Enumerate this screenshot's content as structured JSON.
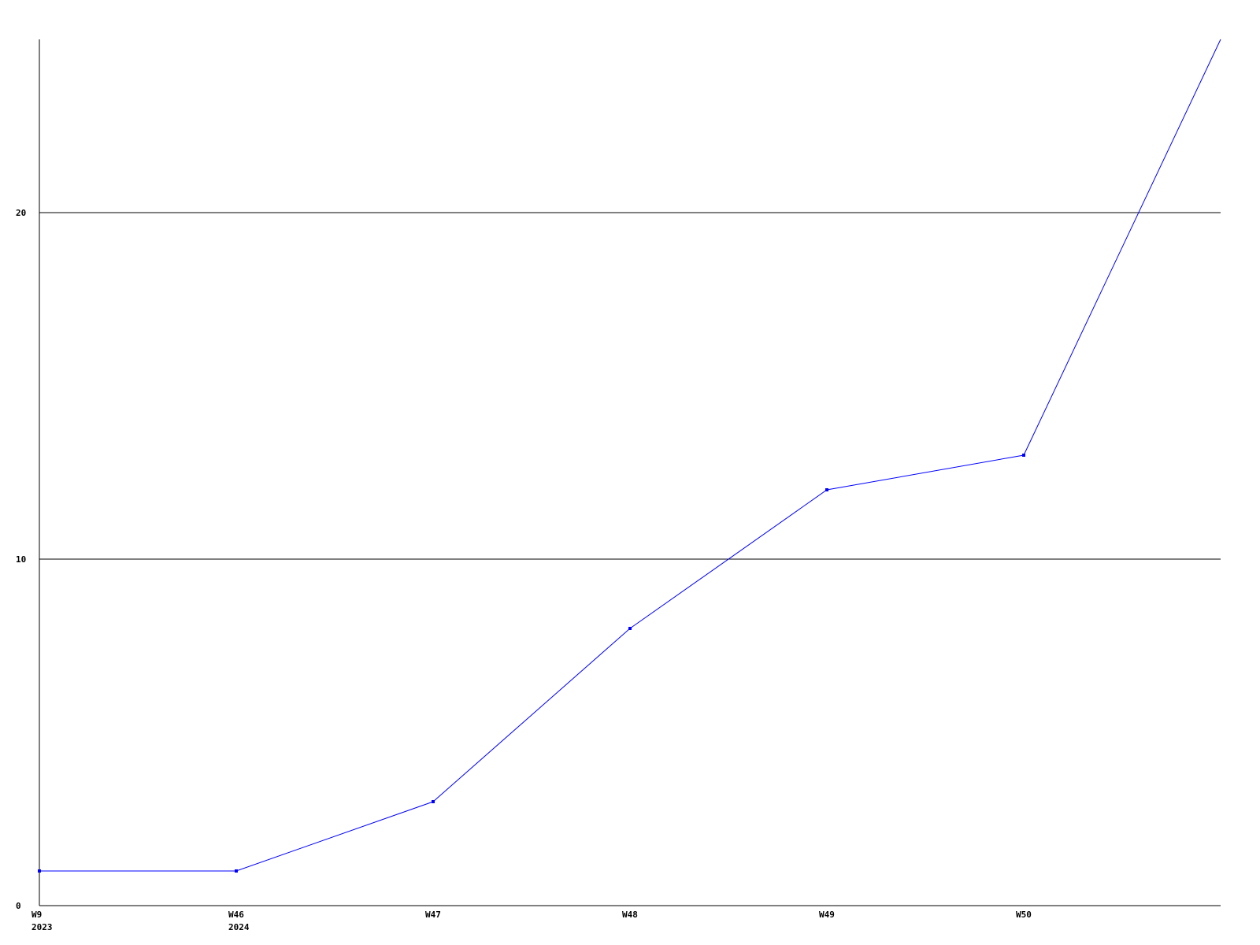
{
  "chart_data": {
    "type": "line",
    "title": "",
    "xlabel": "",
    "ylabel": "",
    "categories": [
      "W9",
      "W46",
      "W47",
      "W48",
      "W49",
      "W50",
      ""
    ],
    "category_sublabels": [
      "2023",
      "2024",
      "",
      "",
      "",
      "",
      ""
    ],
    "series": [
      {
        "values": [
          1,
          1,
          3,
          8,
          12,
          13,
          25
        ],
        "color": "#0000ff"
      }
    ],
    "ylim": [
      0,
      25
    ],
    "yticks": [
      0,
      10,
      20
    ],
    "grid": "horizontal lines at y ticks",
    "legend": "none"
  }
}
